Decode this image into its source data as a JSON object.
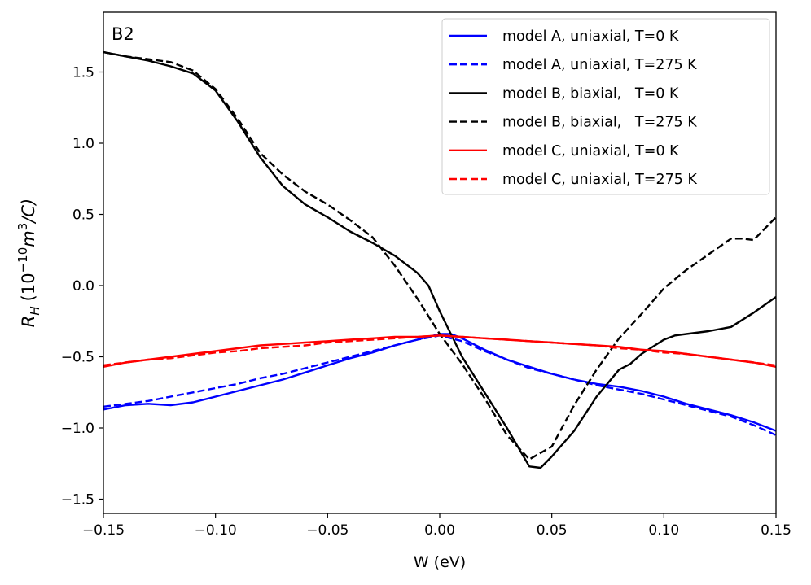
{
  "chart_data": {
    "type": "line",
    "panel_label": "B2",
    "xlabel": "W (eV)",
    "ylabel": {
      "base": "R",
      "base_sub": "H",
      "unit_open": "(10",
      "exp": "−10",
      "unit_mid": "m",
      "unit_exp": "3",
      "unit_close": "/C)"
    },
    "xlim": [
      -0.15,
      0.15
    ],
    "ylim": [
      -1.6,
      1.92
    ],
    "x_ticks": [
      -0.15,
      -0.1,
      -0.05,
      0.0,
      0.05,
      0.1,
      0.15
    ],
    "x_tick_labels": [
      "−0.15",
      "−0.10",
      "−0.05",
      "0.00",
      "0.05",
      "0.10",
      "0.15"
    ],
    "y_ticks": [
      -1.5,
      -1.0,
      -0.5,
      0.0,
      0.5,
      1.0,
      1.5
    ],
    "y_tick_labels": [
      "−1.5",
      "−1.0",
      "−0.5",
      "0.0",
      "0.5",
      "1.0",
      "1.5"
    ],
    "grid": false,
    "legend_position": "top-right",
    "series": [
      {
        "name": "model A, uniaxial, T=0 K",
        "color": "#0000ff",
        "dash": "solid",
        "x": [
          -0.15,
          -0.14,
          -0.13,
          -0.12,
          -0.11,
          -0.1,
          -0.09,
          -0.08,
          -0.07,
          -0.06,
          -0.05,
          -0.04,
          -0.03,
          -0.02,
          -0.01,
          0.0,
          0.005,
          0.01,
          0.02,
          0.03,
          0.04,
          0.05,
          0.06,
          0.07,
          0.08,
          0.09,
          0.1,
          0.11,
          0.12,
          0.13,
          0.14,
          0.15
        ],
        "y": [
          -0.87,
          -0.84,
          -0.83,
          -0.84,
          -0.82,
          -0.78,
          -0.74,
          -0.7,
          -0.66,
          -0.61,
          -0.56,
          -0.51,
          -0.47,
          -0.42,
          -0.38,
          -0.34,
          -0.34,
          -0.37,
          -0.45,
          -0.52,
          -0.57,
          -0.62,
          -0.66,
          -0.69,
          -0.71,
          -0.74,
          -0.78,
          -0.83,
          -0.87,
          -0.91,
          -0.96,
          -1.02
        ]
      },
      {
        "name": "model A, uniaxial, T=275 K",
        "color": "#0000ff",
        "dash": "dashed",
        "x": [
          -0.15,
          -0.14,
          -0.13,
          -0.12,
          -0.11,
          -0.1,
          -0.09,
          -0.08,
          -0.07,
          -0.06,
          -0.05,
          -0.04,
          -0.03,
          -0.02,
          -0.01,
          0.0,
          0.01,
          0.02,
          0.03,
          0.04,
          0.05,
          0.06,
          0.07,
          0.08,
          0.09,
          0.1,
          0.11,
          0.12,
          0.13,
          0.14,
          0.15
        ],
        "y": [
          -0.85,
          -0.83,
          -0.81,
          -0.78,
          -0.75,
          -0.72,
          -0.69,
          -0.65,
          -0.62,
          -0.58,
          -0.54,
          -0.5,
          -0.46,
          -0.42,
          -0.38,
          -0.35,
          -0.39,
          -0.46,
          -0.52,
          -0.58,
          -0.62,
          -0.66,
          -0.7,
          -0.73,
          -0.76,
          -0.8,
          -0.84,
          -0.88,
          -0.92,
          -0.98,
          -1.05
        ]
      },
      {
        "name": "model B, biaxial,   T=0 K",
        "color": "#000000",
        "dash": "solid",
        "x": [
          -0.15,
          -0.14,
          -0.13,
          -0.12,
          -0.11,
          -0.1,
          -0.09,
          -0.08,
          -0.07,
          -0.06,
          -0.05,
          -0.04,
          -0.03,
          -0.02,
          -0.01,
          -0.005,
          0.0,
          0.01,
          0.02,
          0.03,
          0.04,
          0.045,
          0.05,
          0.06,
          0.07,
          0.08,
          0.085,
          0.09,
          0.1,
          0.105,
          0.11,
          0.12,
          0.13,
          0.14,
          0.15
        ],
        "y": [
          1.64,
          1.61,
          1.58,
          1.54,
          1.49,
          1.37,
          1.15,
          0.9,
          0.7,
          0.57,
          0.48,
          0.38,
          0.3,
          0.21,
          0.09,
          0.0,
          -0.18,
          -0.5,
          -0.75,
          -1.0,
          -1.27,
          -1.28,
          -1.2,
          -1.02,
          -0.78,
          -0.59,
          -0.55,
          -0.48,
          -0.38,
          -0.35,
          -0.34,
          -0.32,
          -0.29,
          -0.19,
          -0.08
        ]
      },
      {
        "name": "model B, biaxial,   T=275 K",
        "color": "#000000",
        "dash": "dashed",
        "x": [
          -0.15,
          -0.14,
          -0.13,
          -0.12,
          -0.11,
          -0.1,
          -0.09,
          -0.08,
          -0.07,
          -0.06,
          -0.05,
          -0.04,
          -0.03,
          -0.02,
          -0.01,
          0.0,
          0.01,
          0.02,
          0.03,
          0.04,
          0.05,
          0.06,
          0.07,
          0.08,
          0.09,
          0.1,
          0.11,
          0.12,
          0.13,
          0.135,
          0.14,
          0.15
        ],
        "y": [
          1.64,
          1.61,
          1.59,
          1.57,
          1.51,
          1.38,
          1.17,
          0.93,
          0.78,
          0.66,
          0.57,
          0.46,
          0.34,
          0.14,
          -0.09,
          -0.34,
          -0.55,
          -0.79,
          -1.05,
          -1.22,
          -1.13,
          -0.84,
          -0.59,
          -0.37,
          -0.2,
          -0.02,
          0.11,
          0.22,
          0.33,
          0.33,
          0.32,
          0.48
        ]
      },
      {
        "name": "model C, uniaxial, T=0 K",
        "color": "#ff0000",
        "dash": "solid",
        "x": [
          -0.15,
          -0.14,
          -0.13,
          -0.12,
          -0.11,
          -0.1,
          -0.09,
          -0.08,
          -0.07,
          -0.06,
          -0.05,
          -0.04,
          -0.03,
          -0.02,
          -0.01,
          0.0,
          0.01,
          0.02,
          0.03,
          0.04,
          0.05,
          0.06,
          0.07,
          0.08,
          0.09,
          0.1,
          0.11,
          0.12,
          0.13,
          0.14,
          0.15
        ],
        "y": [
          -0.57,
          -0.54,
          -0.52,
          -0.5,
          -0.48,
          -0.46,
          -0.44,
          -0.42,
          -0.41,
          -0.4,
          -0.39,
          -0.38,
          -0.37,
          -0.36,
          -0.36,
          -0.35,
          -0.36,
          -0.37,
          -0.38,
          -0.39,
          -0.4,
          -0.41,
          -0.42,
          -0.43,
          -0.45,
          -0.46,
          -0.48,
          -0.5,
          -0.52,
          -0.54,
          -0.57
        ]
      },
      {
        "name": "model C, uniaxial, T=275 K",
        "color": "#ff0000",
        "dash": "dashed",
        "x": [
          -0.15,
          -0.14,
          -0.13,
          -0.12,
          -0.11,
          -0.1,
          -0.09,
          -0.08,
          -0.07,
          -0.06,
          -0.05,
          -0.04,
          -0.03,
          -0.02,
          -0.01,
          0.0,
          0.01,
          0.02,
          0.03,
          0.04,
          0.05,
          0.06,
          0.07,
          0.08,
          0.09,
          0.1,
          0.11,
          0.12,
          0.13,
          0.14,
          0.15
        ],
        "y": [
          -0.56,
          -0.54,
          -0.52,
          -0.51,
          -0.49,
          -0.47,
          -0.46,
          -0.44,
          -0.43,
          -0.42,
          -0.4,
          -0.39,
          -0.38,
          -0.37,
          -0.36,
          -0.35,
          -0.36,
          -0.37,
          -0.38,
          -0.39,
          -0.4,
          -0.41,
          -0.42,
          -0.44,
          -0.45,
          -0.47,
          -0.48,
          -0.5,
          -0.52,
          -0.54,
          -0.56
        ]
      }
    ]
  }
}
